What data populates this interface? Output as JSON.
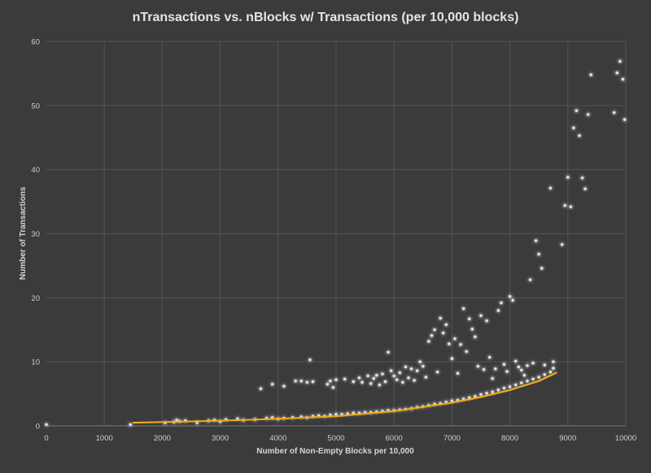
{
  "chart_data": {
    "type": "scatter",
    "title": "nTransactions vs. nBlocks w/ Transactions (per 10,000 blocks)",
    "xlabel": "Number of Non-Empty Blocks per 10,000",
    "ylabel": "Number of Transactions",
    "xlim": [
      0,
      10000
    ],
    "ylim": [
      0,
      60
    ],
    "xticks": [
      0,
      1000,
      2000,
      3000,
      4000,
      5000,
      6000,
      7000,
      8000,
      9000,
      10000
    ],
    "yticks": [
      0,
      10,
      20,
      30,
      40,
      50,
      60
    ],
    "grid": true,
    "colors": {
      "background": "#3b3b3b",
      "points": "#e0e0e0",
      "trendline": "#f0a71d",
      "grid": "#535353"
    },
    "series": [
      {
        "points": [
          [
            0,
            0.2
          ],
          [
            1450,
            0.2
          ],
          [
            2050,
            0.5
          ],
          [
            2200,
            0.6
          ],
          [
            2250,
            0.9
          ],
          [
            2300,
            0.7
          ],
          [
            2400,
            0.8
          ],
          [
            2600,
            0.5
          ],
          [
            2800,
            0.8
          ],
          [
            2900,
            0.9
          ],
          [
            3000,
            0.7
          ],
          [
            3100,
            1.0
          ],
          [
            3300,
            1.1
          ],
          [
            3400,
            0.9
          ],
          [
            3600,
            1.0
          ],
          [
            3800,
            1.2
          ],
          [
            3900,
            1.3
          ],
          [
            4000,
            1.1
          ],
          [
            4100,
            1.2
          ],
          [
            4250,
            1.3
          ],
          [
            4400,
            1.4
          ],
          [
            4500,
            1.3
          ],
          [
            4600,
            1.5
          ],
          [
            4700,
            1.6
          ],
          [
            4800,
            1.5
          ],
          [
            4900,
            1.7
          ],
          [
            5000,
            1.8
          ],
          [
            5100,
            1.8
          ],
          [
            5200,
            1.9
          ],
          [
            5300,
            2.0
          ],
          [
            5400,
            2.0
          ],
          [
            5500,
            2.1
          ],
          [
            5600,
            2.1
          ],
          [
            5700,
            2.2
          ],
          [
            5800,
            2.3
          ],
          [
            5900,
            2.4
          ],
          [
            6000,
            2.4
          ],
          [
            6100,
            2.5
          ],
          [
            6200,
            2.6
          ],
          [
            6300,
            2.7
          ],
          [
            6400,
            2.9
          ],
          [
            6500,
            3.0
          ],
          [
            6600,
            3.2
          ],
          [
            6700,
            3.4
          ],
          [
            6800,
            3.5
          ],
          [
            6900,
            3.7
          ],
          [
            7000,
            3.9
          ],
          [
            7100,
            4.0
          ],
          [
            7200,
            4.2
          ],
          [
            7300,
            4.4
          ],
          [
            7400,
            4.6
          ],
          [
            7500,
            4.9
          ],
          [
            7600,
            5.1
          ],
          [
            7700,
            5.3
          ],
          [
            7800,
            5.6
          ],
          [
            7900,
            5.9
          ],
          [
            8000,
            6.1
          ],
          [
            8100,
            6.4
          ],
          [
            8200,
            6.7
          ],
          [
            8300,
            7.0
          ],
          [
            8400,
            7.3
          ],
          [
            8500,
            7.6
          ],
          [
            8600,
            8.0
          ],
          [
            8700,
            8.4
          ],
          [
            8750,
            9.0
          ],
          [
            3700,
            5.8
          ],
          [
            3900,
            6.5
          ],
          [
            4100,
            6.2
          ],
          [
            4300,
            7.0
          ],
          [
            4400,
            7.0
          ],
          [
            4500,
            6.8
          ],
          [
            4550,
            10.3
          ],
          [
            4600,
            6.9
          ],
          [
            4850,
            6.5
          ],
          [
            4900,
            7.0
          ],
          [
            4950,
            6.0
          ],
          [
            5000,
            7.2
          ],
          [
            5150,
            7.3
          ],
          [
            5300,
            6.9
          ],
          [
            5400,
            7.5
          ],
          [
            5450,
            6.8
          ],
          [
            5550,
            7.8
          ],
          [
            5600,
            6.6
          ],
          [
            5650,
            7.4
          ],
          [
            5700,
            7.9
          ],
          [
            5750,
            6.4
          ],
          [
            5800,
            8.1
          ],
          [
            5850,
            6.9
          ],
          [
            5900,
            11.5
          ],
          [
            5950,
            8.6
          ],
          [
            6000,
            7.8
          ],
          [
            6050,
            7.2
          ],
          [
            6100,
            8.3
          ],
          [
            6150,
            6.8
          ],
          [
            6200,
            9.2
          ],
          [
            6250,
            7.5
          ],
          [
            6300,
            8.9
          ],
          [
            6350,
            7.1
          ],
          [
            6400,
            8.6
          ],
          [
            6450,
            10.0
          ],
          [
            6500,
            9.3
          ],
          [
            6550,
            7.6
          ],
          [
            6600,
            13.2
          ],
          [
            6650,
            14.1
          ],
          [
            6700,
            15.0
          ],
          [
            6750,
            8.4
          ],
          [
            6800,
            16.8
          ],
          [
            6850,
            14.5
          ],
          [
            6900,
            15.8
          ],
          [
            6950,
            12.8
          ],
          [
            7000,
            10.5
          ],
          [
            7050,
            13.6
          ],
          [
            7100,
            8.2
          ],
          [
            7150,
            12.7
          ],
          [
            7200,
            18.3
          ],
          [
            7250,
            11.6
          ],
          [
            7300,
            16.7
          ],
          [
            7350,
            15.1
          ],
          [
            7400,
            13.9
          ],
          [
            7450,
            9.3
          ],
          [
            7500,
            17.2
          ],
          [
            7550,
            8.8
          ],
          [
            7600,
            16.4
          ],
          [
            7650,
            10.7
          ],
          [
            7700,
            7.4
          ],
          [
            7750,
            8.9
          ],
          [
            7800,
            18.0
          ],
          [
            7850,
            19.2
          ],
          [
            7900,
            9.6
          ],
          [
            7950,
            8.5
          ],
          [
            8000,
            20.2
          ],
          [
            8050,
            19.6
          ],
          [
            8100,
            10.1
          ],
          [
            8150,
            9.2
          ],
          [
            8200,
            8.7
          ],
          [
            8250,
            7.9
          ],
          [
            8300,
            9.4
          ],
          [
            8350,
            22.8
          ],
          [
            8400,
            9.8
          ],
          [
            8450,
            28.9
          ],
          [
            8500,
            26.8
          ],
          [
            8550,
            24.6
          ],
          [
            8600,
            9.5
          ],
          [
            8700,
            37.1
          ],
          [
            8750,
            10.0
          ],
          [
            8900,
            28.3
          ],
          [
            8950,
            34.4
          ],
          [
            9000,
            38.8
          ],
          [
            9050,
            34.2
          ],
          [
            9100,
            46.5
          ],
          [
            9150,
            49.2
          ],
          [
            9200,
            45.3
          ],
          [
            9250,
            38.7
          ],
          [
            9300,
            37.0
          ],
          [
            9350,
            48.6
          ],
          [
            9400,
            54.8
          ],
          [
            9800,
            48.9
          ],
          [
            9850,
            55.1
          ],
          [
            9900,
            56.9
          ],
          [
            9950,
            54.1
          ],
          [
            9980,
            47.8
          ]
        ]
      }
    ],
    "trendline": {
      "type": "exponential",
      "x_range": [
        1500,
        8800
      ],
      "points": [
        [
          1500,
          0.5
        ],
        [
          2000,
          0.6
        ],
        [
          3000,
          0.8
        ],
        [
          4000,
          1.1
        ],
        [
          5000,
          1.5
        ],
        [
          6000,
          2.3
        ],
        [
          7000,
          3.6
        ],
        [
          7500,
          4.5
        ],
        [
          8000,
          5.6
        ],
        [
          8500,
          7.0
        ],
        [
          8800,
          8.3
        ]
      ]
    }
  }
}
